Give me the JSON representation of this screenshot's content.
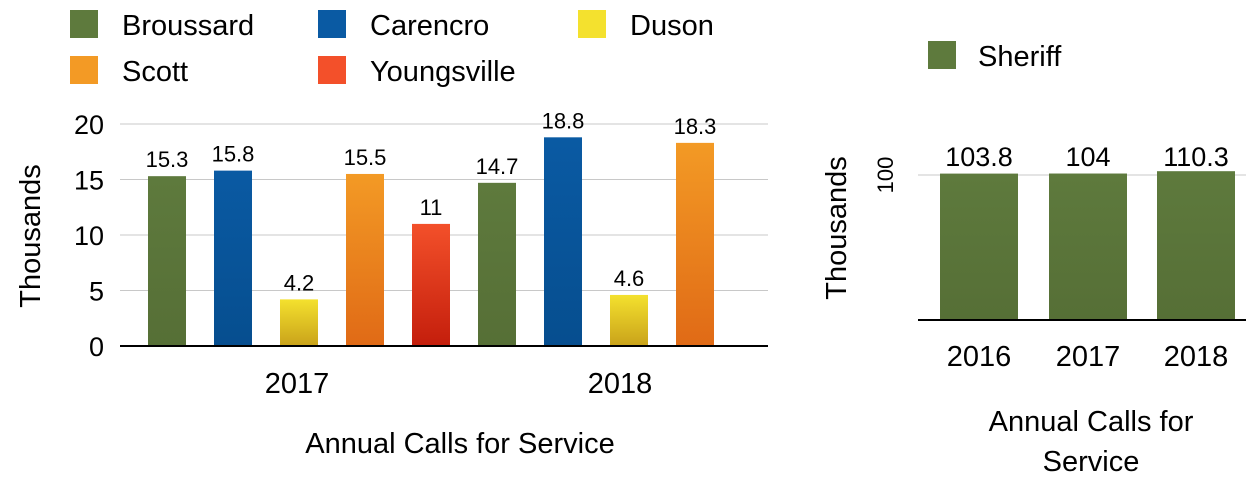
{
  "colors": {
    "Broussard": [
      "#5e7a3d",
      "#566f36"
    ],
    "Carencro": [
      "#0a5aa3",
      "#064e8f"
    ],
    "Duson": [
      "#f4e12e",
      "#c9a21a"
    ],
    "Scott": [
      "#f39a25",
      "#e06a16"
    ],
    "Youngsville": [
      "#f3502a",
      "#c41e0c"
    ],
    "Sheriff": [
      "#5e7a3d",
      "#566f36"
    ],
    "grid": "#c8c8c8",
    "axis": "#000000"
  },
  "chart_data": [
    {
      "type": "bar",
      "title": "",
      "xlabel": "Annual Calls for Service",
      "ylabel": "Thousands",
      "ylim": [
        0,
        20
      ],
      "yticks": [
        0,
        5,
        10,
        15,
        20
      ],
      "grid": true,
      "legend_position": "top-left",
      "categories": [
        "2017",
        "2018"
      ],
      "series": [
        {
          "name": "Broussard",
          "values": [
            15.3,
            14.7
          ]
        },
        {
          "name": "Carencro",
          "values": [
            15.8,
            18.8
          ]
        },
        {
          "name": "Duson",
          "values": [
            4.2,
            4.6
          ]
        },
        {
          "name": "Scott",
          "values": [
            15.5,
            18.3
          ]
        },
        {
          "name": "Youngsville",
          "values": [
            11,
            null
          ]
        }
      ],
      "data_labels": [
        [
          "15.3",
          "15.8",
          "4.2",
          "15.5",
          "11"
        ],
        [
          "14.7",
          "18.8",
          "4.6",
          "18.3",
          ""
        ]
      ]
    },
    {
      "type": "bar",
      "title": "",
      "xlabel": "Annual Calls for Service",
      "ylabel": "Thousands",
      "yticks": [
        100
      ],
      "grid": true,
      "legend_position": "top",
      "categories": [
        "2016",
        "2017",
        "2018"
      ],
      "series": [
        {
          "name": "Sheriff",
          "values": [
            103.8,
            104,
            110.3
          ]
        }
      ],
      "data_labels": [
        [
          "103.8",
          "104",
          "110.3"
        ]
      ]
    }
  ]
}
